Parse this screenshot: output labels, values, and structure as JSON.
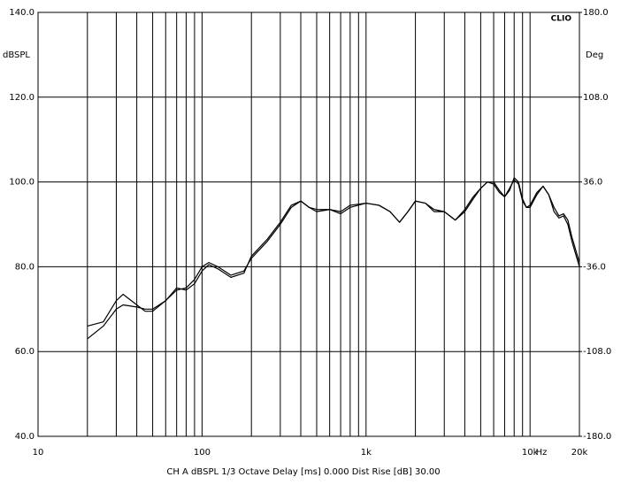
{
  "chart_data": {
    "type": "line",
    "brand": "CLIO",
    "y_label": "dBSPL",
    "y2_label": "Deg",
    "x_label": "Hz",
    "footer": "CH A  dBSPL  1/3 Octave  Delay [ms] 0.000  Dist Rise [dB] 30.00",
    "log_x": true,
    "grid": true,
    "xlim": [
      10,
      20000
    ],
    "xticks": [
      10,
      100,
      {
        "value": 1000,
        "label": "1k"
      },
      {
        "value": 10000,
        "label": "10k"
      },
      {
        "value": 20000,
        "label": "20k"
      }
    ],
    "xminor_ticks": [
      20,
      30,
      40,
      50,
      60,
      70,
      80,
      90,
      200,
      300,
      400,
      500,
      600,
      700,
      800,
      900,
      2000,
      3000,
      4000,
      5000,
      6000,
      7000,
      8000,
      9000
    ],
    "ylim": [
      40,
      140
    ],
    "yticks": [
      {
        "value": 40,
        "label": "40.0"
      },
      {
        "value": 60,
        "label": "60.0"
      },
      {
        "value": 80,
        "label": "80.0"
      },
      {
        "value": 100,
        "label": "100.0"
      },
      {
        "value": 120,
        "label": "120.0"
      },
      {
        "value": 140,
        "label": "140.0"
      }
    ],
    "y2lim": [
      -180,
      180
    ],
    "y2ticks": [
      {
        "value": -180,
        "label": "-180.0"
      },
      {
        "value": -108,
        "label": "-108.0"
      },
      {
        "value": -36,
        "label": "-36.0"
      },
      {
        "value": 36,
        "label": "36.0"
      },
      {
        "value": 108,
        "label": "108.0"
      },
      {
        "value": 180,
        "label": "180.0"
      }
    ],
    "x": [
      20,
      25,
      30,
      33,
      40,
      45,
      50,
      60,
      70,
      80,
      90,
      100,
      110,
      125,
      150,
      180,
      200,
      250,
      300,
      350,
      400,
      450,
      500,
      600,
      700,
      800,
      1000,
      1200,
      1400,
      1600,
      1800,
      2000,
      2300,
      2600,
      3000,
      3500,
      4000,
      4500,
      5000,
      5500,
      6000,
      6500,
      7000,
      7500,
      8000,
      8500,
      9000,
      9500,
      10000,
      11000,
      12000,
      13000,
      14000,
      15000,
      16000,
      17000,
      18000,
      20000
    ],
    "series": [
      {
        "color": "#000000",
        "values": [
          63,
          66,
          70,
          71,
          70.5,
          70,
          70,
          72,
          74.5,
          75,
          77,
          80,
          81,
          80,
          78,
          79,
          82,
          86,
          90,
          94,
          95.5,
          94,
          93,
          93.5,
          93,
          94.5,
          95,
          94.5,
          93,
          90.5,
          93,
          95.5,
          95,
          93,
          93,
          91,
          93,
          96,
          98.5,
          100,
          100,
          98,
          96.5,
          98,
          101,
          100,
          96,
          94,
          94,
          97,
          99,
          97,
          93,
          91.5,
          92,
          90,
          86,
          80
        ]
      },
      {
        "color": "#000000",
        "values": [
          66,
          67,
          72,
          73.5,
          71,
          69.5,
          69.5,
          72,
          75,
          74.5,
          76,
          79,
          80.5,
          79.5,
          77.5,
          78.5,
          82.5,
          86.5,
          90.5,
          94.5,
          95.5,
          94,
          93.5,
          93.5,
          92.5,
          94,
          95,
          94.5,
          93,
          90.5,
          93,
          95.5,
          95,
          93.5,
          93,
          91,
          93.5,
          96.5,
          98.5,
          100,
          99.5,
          97.5,
          96.5,
          98.5,
          100.5,
          99.5,
          95.5,
          94,
          94.5,
          97.5,
          99,
          97,
          94,
          92,
          92.5,
          91,
          87,
          81
        ]
      }
    ]
  }
}
